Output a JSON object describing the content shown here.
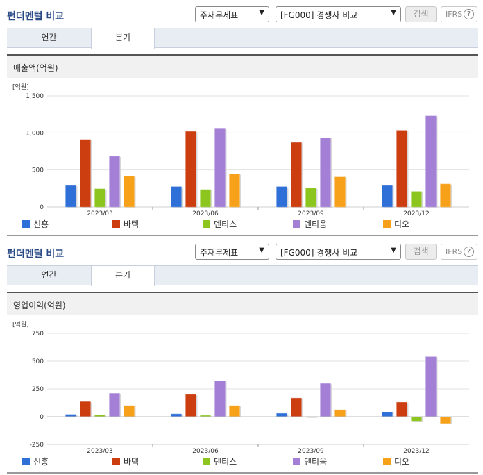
{
  "sections": [
    {
      "title": "펀더멘털 비교",
      "select_a": "주재무제표",
      "select_b": "[FG000] 경쟁사 비교",
      "search_button": "검색",
      "ifrs_button": "IFRS",
      "help_glyph": "?",
      "tabs": [
        "연간",
        "분기"
      ],
      "active_tab": "분기",
      "chart_title": "매출액(억원)",
      "unit_label": "[억원]"
    },
    {
      "title": "펀더멘털 비교",
      "select_a": "주재무제표",
      "select_b": "[FG000] 경쟁사 비교",
      "search_button": "검색",
      "ifrs_button": "IFRS",
      "help_glyph": "?",
      "tabs": [
        "연간",
        "분기"
      ],
      "active_tab": "분기",
      "chart_title": "영업이익(억원)",
      "unit_label": "[억원]"
    }
  ],
  "colors": {
    "신흥": "#2f6fd8",
    "바텍": "#cc3d10",
    "덴티스": "#8cc51e",
    "덴티움": "#a37fd6",
    "디오": "#f7a11a"
  },
  "icons": [
    "chevron-down-icon",
    "help-circle-icon"
  ],
  "chart_data": [
    {
      "type": "bar",
      "title": "매출액(억원)",
      "ylabel": "[억원]",
      "categories": [
        "2023/03",
        "2023/06",
        "2023/09",
        "2023/12"
      ],
      "ylim": [
        0,
        1500
      ],
      "yticks": [
        0,
        500,
        1000,
        1500
      ],
      "ytick_labels": [
        "0",
        "500",
        "1,000",
        "1,500"
      ],
      "grid": true,
      "legend_position": "bottom",
      "series": [
        {
          "name": "신흥",
          "values": [
            290,
            275,
            275,
            290
          ]
        },
        {
          "name": "바텍",
          "values": [
            910,
            1020,
            870,
            1035
          ]
        },
        {
          "name": "덴티스",
          "values": [
            245,
            235,
            255,
            210
          ]
        },
        {
          "name": "덴티움",
          "values": [
            685,
            1055,
            935,
            1230
          ]
        },
        {
          "name": "디오",
          "values": [
            415,
            445,
            405,
            310
          ]
        }
      ]
    },
    {
      "type": "bar",
      "title": "영업이익(억원)",
      "ylabel": "[억원]",
      "categories": [
        "2023/03",
        "2023/06",
        "2023/09",
        "2023/12"
      ],
      "ylim": [
        -250,
        750
      ],
      "yticks": [
        -250,
        0,
        250,
        500,
        750
      ],
      "ytick_labels": [
        "-250",
        "0",
        "250",
        "500",
        "750"
      ],
      "grid": true,
      "legend_position": "bottom",
      "series": [
        {
          "name": "신흥",
          "values": [
            20,
            25,
            30,
            42
          ]
        },
        {
          "name": "바텍",
          "values": [
            135,
            200,
            168,
            130
          ]
        },
        {
          "name": "덴티스",
          "values": [
            15,
            12,
            2,
            -38
          ]
        },
        {
          "name": "덴티움",
          "values": [
            210,
            322,
            298,
            540
          ]
        },
        {
          "name": "디오",
          "values": [
            100,
            100,
            62,
            -60
          ]
        }
      ]
    }
  ]
}
